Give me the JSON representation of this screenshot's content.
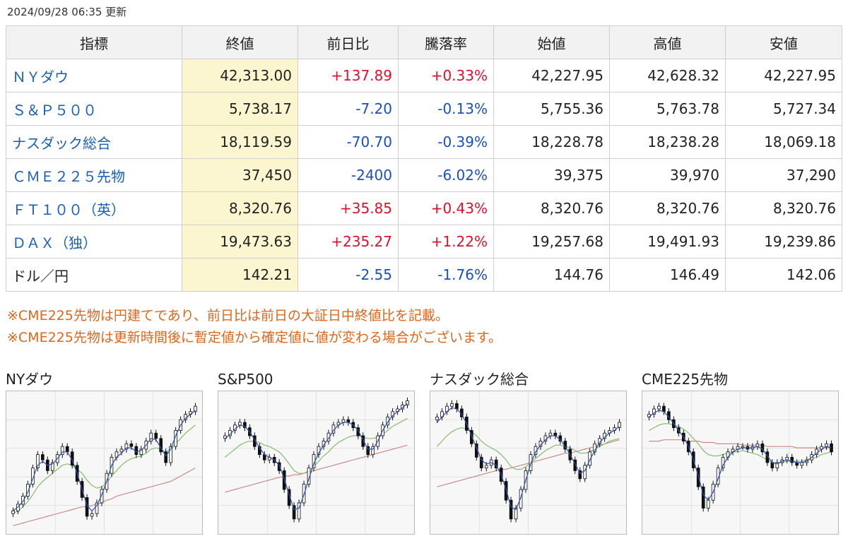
{
  "updated": "2024/09/28 06:35 更新",
  "headers": [
    "指標",
    "終値",
    "前日比",
    "騰落率",
    "始値",
    "高値",
    "安値"
  ],
  "rows": [
    {
      "name": "ＮＹダウ",
      "link": true,
      "close": "42,313.00",
      "change": "+137.89",
      "rate": "+0.33%",
      "open": "42,227.95",
      "high": "42,628.32",
      "low": "42,227.95",
      "dir": "up"
    },
    {
      "name": "Ｓ＆Ｐ５００",
      "link": true,
      "close": "5,738.17",
      "change": "-7.20",
      "rate": "-0.13%",
      "open": "5,755.36",
      "high": "5,763.78",
      "low": "5,727.34",
      "dir": "down"
    },
    {
      "name": "ナスダック総合",
      "link": true,
      "close": "18,119.59",
      "change": "-70.70",
      "rate": "-0.39%",
      "open": "18,228.78",
      "high": "18,238.28",
      "low": "18,069.18",
      "dir": "down"
    },
    {
      "name": "ＣＭＥ２２５先物",
      "link": true,
      "close": "37,450",
      "change": "-2400",
      "rate": "-6.02%",
      "open": "39,375",
      "high": "39,970",
      "low": "37,290",
      "dir": "down"
    },
    {
      "name": "ＦＴ１００（英）",
      "link": true,
      "close": "8,320.76",
      "change": "+35.85",
      "rate": "+0.43%",
      "open": "8,320.76",
      "high": "8,320.76",
      "low": "8,320.76",
      "dir": "up"
    },
    {
      "name": "ＤＡＸ（独）",
      "link": true,
      "close": "19,473.63",
      "change": "+235.27",
      "rate": "+1.22%",
      "open": "19,257.68",
      "high": "19,491.93",
      "low": "19,239.86",
      "dir": "up"
    },
    {
      "name": "ドル／円",
      "link": false,
      "close": "142.21",
      "change": "-2.55",
      "rate": "-1.76%",
      "open": "144.76",
      "high": "146.49",
      "low": "142.06",
      "dir": "down"
    }
  ],
  "notes": [
    "※CME225先物は円建てであり、前日比は前日の大証日中終値比を記載。",
    "※CME225先物は更新時間後に暫定値から確定値に値が変わる場合がございます。"
  ],
  "colors": {
    "up": "#e0102b",
    "down": "#1a4fc0",
    "link": "#1a5fb4",
    "note": "#e0661a",
    "close_bg": "#fbf6cf",
    "ma_short": "#2b4ea8",
    "ma_mid": "#7fbf6a",
    "ma_long": "#c98a8a"
  },
  "chart_data": [
    {
      "type": "candlestick",
      "title": "NYダウ",
      "close": [
        0.14,
        0.19,
        0.25,
        0.34,
        0.46,
        0.56,
        0.52,
        0.44,
        0.5,
        0.56,
        0.62,
        0.58,
        0.48,
        0.36,
        0.24,
        0.1,
        0.12,
        0.2,
        0.3,
        0.42,
        0.54,
        0.58,
        0.6,
        0.64,
        0.62,
        0.56,
        0.6,
        0.66,
        0.72,
        0.68,
        0.58,
        0.5,
        0.62,
        0.74,
        0.82,
        0.86,
        0.88,
        0.92
      ],
      "ma_short": [
        0.14,
        0.17,
        0.21,
        0.28,
        0.38,
        0.48,
        0.51,
        0.48,
        0.49,
        0.53,
        0.58,
        0.58,
        0.52,
        0.42,
        0.3,
        0.18,
        0.14,
        0.18,
        0.26,
        0.36,
        0.48,
        0.54,
        0.57,
        0.61,
        0.61,
        0.58,
        0.59,
        0.63,
        0.68,
        0.67,
        0.61,
        0.55,
        0.6,
        0.7,
        0.78,
        0.83,
        0.86,
        0.89
      ],
      "ma_mid": [
        0.12,
        0.14,
        0.17,
        0.21,
        0.26,
        0.32,
        0.36,
        0.39,
        0.42,
        0.45,
        0.48,
        0.49,
        0.48,
        0.45,
        0.42,
        0.37,
        0.33,
        0.31,
        0.32,
        0.35,
        0.4,
        0.44,
        0.48,
        0.51,
        0.53,
        0.54,
        0.55,
        0.57,
        0.6,
        0.61,
        0.6,
        0.58,
        0.6,
        0.64,
        0.68,
        0.72,
        0.75,
        0.78
      ],
      "ma_long": [
        0.03,
        0.04,
        0.05,
        0.06,
        0.07,
        0.08,
        0.09,
        0.1,
        0.11,
        0.12,
        0.13,
        0.14,
        0.15,
        0.16,
        0.17,
        0.17,
        0.18,
        0.19,
        0.2,
        0.22,
        0.23,
        0.25,
        0.26,
        0.27,
        0.28,
        0.29,
        0.3,
        0.31,
        0.32,
        0.33,
        0.34,
        0.35,
        0.36,
        0.38,
        0.4,
        0.42,
        0.44,
        0.46
      ]
    },
    {
      "type": "candlestick",
      "title": "S&P500",
      "close": [
        0.7,
        0.74,
        0.78,
        0.8,
        0.76,
        0.7,
        0.62,
        0.56,
        0.52,
        0.54,
        0.5,
        0.44,
        0.3,
        0.18,
        0.08,
        0.2,
        0.34,
        0.46,
        0.56,
        0.62,
        0.66,
        0.72,
        0.78,
        0.8,
        0.82,
        0.8,
        0.76,
        0.7,
        0.62,
        0.56,
        0.62,
        0.7,
        0.78,
        0.84,
        0.88,
        0.9,
        0.93,
        0.96
      ],
      "ma_short": [
        0.68,
        0.71,
        0.75,
        0.78,
        0.77,
        0.73,
        0.67,
        0.61,
        0.56,
        0.54,
        0.52,
        0.48,
        0.38,
        0.26,
        0.15,
        0.16,
        0.26,
        0.38,
        0.49,
        0.57,
        0.63,
        0.68,
        0.74,
        0.78,
        0.8,
        0.8,
        0.78,
        0.74,
        0.67,
        0.6,
        0.6,
        0.66,
        0.74,
        0.8,
        0.85,
        0.88,
        0.91,
        0.94
      ],
      "ma_mid": [
        0.54,
        0.57,
        0.6,
        0.63,
        0.65,
        0.66,
        0.66,
        0.65,
        0.63,
        0.62,
        0.6,
        0.58,
        0.54,
        0.49,
        0.44,
        0.42,
        0.42,
        0.44,
        0.47,
        0.51,
        0.55,
        0.58,
        0.62,
        0.65,
        0.67,
        0.69,
        0.7,
        0.7,
        0.69,
        0.68,
        0.68,
        0.69,
        0.71,
        0.74,
        0.77,
        0.79,
        0.81,
        0.83
      ],
      "ma_long": [
        0.28,
        0.29,
        0.3,
        0.31,
        0.32,
        0.33,
        0.34,
        0.35,
        0.36,
        0.37,
        0.38,
        0.39,
        0.4,
        0.4,
        0.41,
        0.41,
        0.42,
        0.43,
        0.44,
        0.45,
        0.46,
        0.47,
        0.48,
        0.49,
        0.5,
        0.51,
        0.52,
        0.53,
        0.54,
        0.55,
        0.56,
        0.57,
        0.58,
        0.59,
        0.6,
        0.61,
        0.62,
        0.63
      ]
    },
    {
      "type": "candlestick",
      "title": "ナスダック総合",
      "close": [
        0.84,
        0.88,
        0.92,
        0.94,
        0.9,
        0.84,
        0.74,
        0.64,
        0.54,
        0.46,
        0.48,
        0.52,
        0.46,
        0.36,
        0.22,
        0.08,
        0.16,
        0.3,
        0.44,
        0.56,
        0.62,
        0.66,
        0.7,
        0.72,
        0.7,
        0.66,
        0.6,
        0.52,
        0.44,
        0.38,
        0.48,
        0.58,
        0.64,
        0.68,
        0.72,
        0.74,
        0.76,
        0.8
      ],
      "ma_short": [
        0.8,
        0.84,
        0.88,
        0.91,
        0.9,
        0.86,
        0.79,
        0.7,
        0.61,
        0.52,
        0.49,
        0.5,
        0.48,
        0.41,
        0.3,
        0.17,
        0.15,
        0.24,
        0.37,
        0.49,
        0.58,
        0.63,
        0.67,
        0.7,
        0.7,
        0.67,
        0.62,
        0.56,
        0.49,
        0.42,
        0.44,
        0.52,
        0.59,
        0.65,
        0.69,
        0.72,
        0.74,
        0.77
      ],
      "ma_mid": [
        0.62,
        0.66,
        0.7,
        0.73,
        0.75,
        0.76,
        0.75,
        0.73,
        0.7,
        0.66,
        0.63,
        0.61,
        0.59,
        0.56,
        0.52,
        0.47,
        0.45,
        0.45,
        0.47,
        0.5,
        0.53,
        0.56,
        0.59,
        0.61,
        0.63,
        0.63,
        0.62,
        0.61,
        0.59,
        0.57,
        0.57,
        0.58,
        0.6,
        0.62,
        0.64,
        0.66,
        0.67,
        0.68
      ],
      "ma_long": [
        0.32,
        0.33,
        0.34,
        0.35,
        0.36,
        0.37,
        0.38,
        0.39,
        0.4,
        0.41,
        0.42,
        0.43,
        0.44,
        0.45,
        0.45,
        0.46,
        0.47,
        0.48,
        0.49,
        0.5,
        0.51,
        0.52,
        0.53,
        0.54,
        0.55,
        0.56,
        0.57,
        0.57,
        0.58,
        0.59,
        0.6,
        0.61,
        0.62,
        0.63,
        0.64,
        0.65,
        0.66,
        0.67
      ]
    },
    {
      "type": "candlestick",
      "title": "CME225先物",
      "close": [
        0.86,
        0.9,
        0.92,
        0.88,
        0.82,
        0.76,
        0.72,
        0.66,
        0.58,
        0.46,
        0.32,
        0.16,
        0.22,
        0.34,
        0.46,
        0.54,
        0.58,
        0.6,
        0.62,
        0.62,
        0.6,
        0.62,
        0.64,
        0.58,
        0.5,
        0.46,
        0.5,
        0.52,
        0.54,
        0.5,
        0.48,
        0.5,
        0.52,
        0.56,
        0.6,
        0.62,
        0.64,
        0.58
      ],
      "ma_short": [
        0.84,
        0.87,
        0.89,
        0.88,
        0.84,
        0.79,
        0.74,
        0.69,
        0.62,
        0.52,
        0.4,
        0.26,
        0.22,
        0.28,
        0.38,
        0.48,
        0.54,
        0.58,
        0.6,
        0.61,
        0.61,
        0.61,
        0.62,
        0.6,
        0.55,
        0.5,
        0.49,
        0.51,
        0.52,
        0.51,
        0.5,
        0.5,
        0.51,
        0.54,
        0.57,
        0.6,
        0.62,
        0.61
      ],
      "ma_mid": [
        0.74,
        0.76,
        0.78,
        0.79,
        0.79,
        0.78,
        0.77,
        0.75,
        0.72,
        0.68,
        0.64,
        0.59,
        0.56,
        0.55,
        0.55,
        0.56,
        0.57,
        0.58,
        0.58,
        0.59,
        0.58,
        0.57,
        0.56,
        0.54,
        0.52,
        0.5,
        0.5,
        0.5,
        0.51,
        0.51,
        0.51,
        0.51,
        0.52,
        0.53,
        0.54,
        0.56,
        0.57,
        0.58
      ],
      "ma_long": [
        0.66,
        0.66,
        0.66,
        0.67,
        0.67,
        0.67,
        0.67,
        0.67,
        0.66,
        0.66,
        0.66,
        0.65,
        0.65,
        0.65,
        0.64,
        0.64,
        0.64,
        0.64,
        0.64,
        0.63,
        0.63,
        0.63,
        0.63,
        0.63,
        0.62,
        0.62,
        0.62,
        0.62,
        0.62,
        0.62,
        0.61,
        0.61,
        0.61,
        0.61,
        0.61,
        0.61,
        0.61,
        0.61
      ]
    }
  ]
}
